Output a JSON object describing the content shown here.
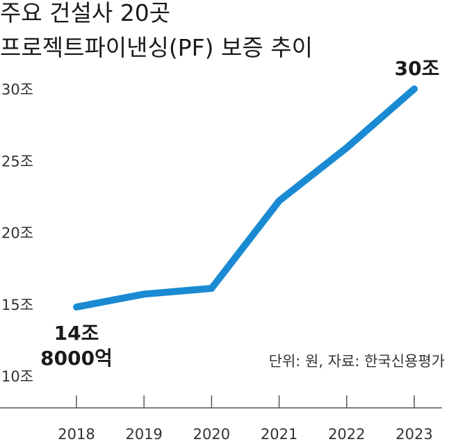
{
  "title_line1": "주요 건설사 20곳",
  "title_line2": "프로젝트파이낸싱(PF) 보증 추이",
  "source_note": "단위: 원, 자료: 한국신용평가",
  "label_start_line1": "14조",
  "label_start_line2": "8000억",
  "label_end": "30조",
  "colors": {
    "line": "#1a8ad3",
    "axis": "#555555",
    "text": "#222222"
  },
  "chart_data": {
    "type": "line",
    "title": "주요 건설사 20곳 프로젝트파이낸싱(PF) 보증 추이",
    "unit": "원",
    "source": "한국신용평가",
    "x": [
      "2018",
      "2019",
      "2020",
      "2021",
      "2022",
      "2023"
    ],
    "series": [
      {
        "values": [
          14.8,
          15.7,
          16.1,
          22.2,
          25.9,
          30.0
        ]
      }
    ],
    "y_ticks": [
      "10조",
      "15조",
      "20조",
      "25조",
      "30조"
    ],
    "y_tick_values": [
      10,
      15,
      20,
      25,
      30
    ],
    "ylim": [
      10,
      30
    ],
    "grid": false
  }
}
